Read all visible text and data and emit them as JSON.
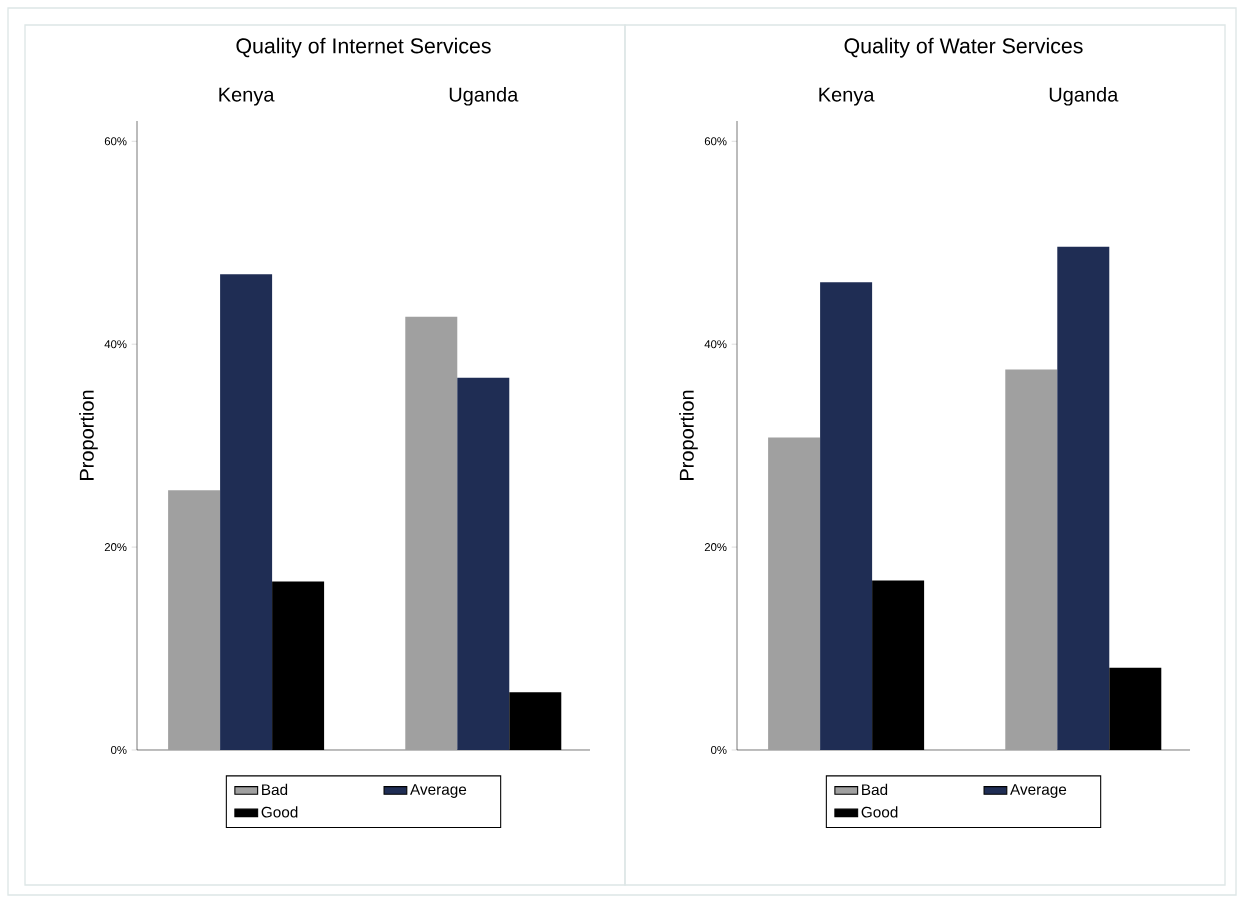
{
  "chart_data": [
    {
      "type": "bar",
      "title": "Quality of Internet Services",
      "categories": [
        "Kenya",
        "Uganda"
      ],
      "ylabel": "Proportion",
      "ylim": [
        0,
        62
      ],
      "yticks": [
        {
          "value": 0,
          "label": "0%"
        },
        {
          "value": 20,
          "label": "20%"
        },
        {
          "value": 40,
          "label": "40%"
        },
        {
          "value": 60,
          "label": "60%"
        }
      ],
      "legend": "bottom",
      "series": [
        {
          "name": "Bad",
          "color": "#a0a0a0",
          "values": [
            25.6,
            42.7
          ]
        },
        {
          "name": "Average",
          "color": "#1f2d54",
          "values": [
            46.9,
            36.7
          ]
        },
        {
          "name": "Good",
          "color": "#000000",
          "values": [
            16.6,
            5.7
          ]
        }
      ]
    },
    {
      "type": "bar",
      "title": "Quality of Water Services",
      "categories": [
        "Kenya",
        "Uganda"
      ],
      "ylabel": "Proportion",
      "ylim": [
        0,
        62
      ],
      "yticks": [
        {
          "value": 0,
          "label": "0%"
        },
        {
          "value": 20,
          "label": "20%"
        },
        {
          "value": 40,
          "label": "40%"
        },
        {
          "value": 60,
          "label": "60%"
        }
      ],
      "legend": "bottom",
      "series": [
        {
          "name": "Bad",
          "color": "#a0a0a0",
          "values": [
            30.8,
            37.5
          ]
        },
        {
          "name": "Average",
          "color": "#1f2d54",
          "values": [
            46.1,
            49.6
          ]
        },
        {
          "name": "Good",
          "color": "#000000",
          "values": [
            16.7,
            8.1
          ]
        }
      ]
    }
  ]
}
